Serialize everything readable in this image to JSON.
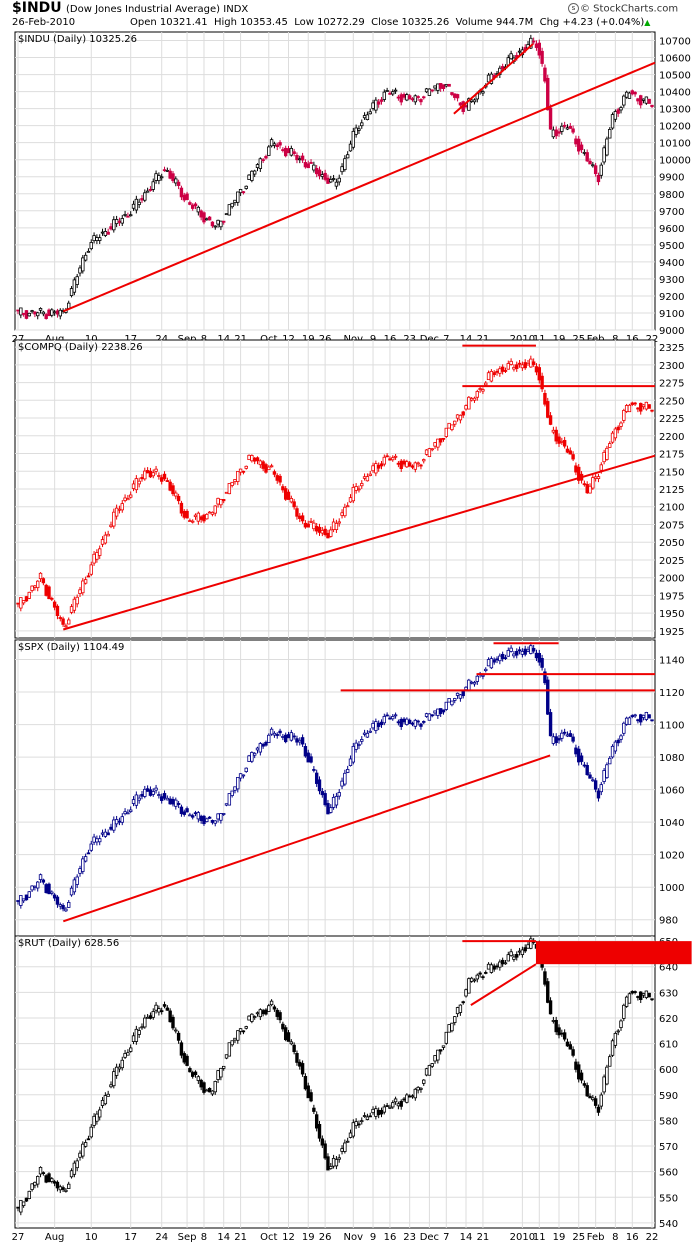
{
  "header": {
    "symbol": "$INDU",
    "name": "(Dow Jones Industrial Average)",
    "exchange": "INDX",
    "date": "26-Feb-2010",
    "ohlc": "Open 10321.41  High 10353.45  Low 10272.29  Close 10325.26  Volume 944.7M  Chg +4.23 (+0.04%)",
    "change_arrow": "▲",
    "brand": "© StockCharts.com"
  },
  "x_axis_labels": [
    "27",
    "Aug",
    "10",
    "17",
    "24",
    "Sep",
    "8",
    "14",
    "21",
    "Oct",
    "12",
    "19",
    "26",
    "Nov",
    "9",
    "16",
    "23",
    "Dec",
    "7",
    "14",
    "21",
    "2010",
    "11",
    "19",
    "25",
    "Feb",
    "8",
    "16",
    "22"
  ],
  "chart_data": [
    {
      "type": "candlestick",
      "label": "$INDU (Daily) 10325.26",
      "symbol": "$INDU",
      "color": "#000000",
      "down_color": "#cc0044",
      "ylim": [
        9000,
        10750
      ],
      "yticks": [
        9000,
        9100,
        9200,
        9300,
        9400,
        9500,
        9600,
        9700,
        9800,
        9900,
        10000,
        10100,
        10200,
        10300,
        10400,
        10500,
        10600,
        10700
      ],
      "anchors": [
        [
          0,
          9100
        ],
        [
          16,
          9100
        ],
        [
          25,
          9500
        ],
        [
          40,
          9700
        ],
        [
          52,
          9950
        ],
        [
          60,
          9750
        ],
        [
          70,
          9600
        ],
        [
          82,
          9900
        ],
        [
          90,
          10100
        ],
        [
          100,
          10000
        ],
        [
          112,
          9850
        ],
        [
          120,
          10200
        ],
        [
          130,
          10400
        ],
        [
          140,
          10350
        ],
        [
          150,
          10450
        ],
        [
          158,
          10300
        ],
        [
          167,
          10480
        ],
        [
          176,
          10620
        ],
        [
          183,
          10700
        ],
        [
          186,
          10500
        ],
        [
          188,
          10150
        ],
        [
          194,
          10200
        ],
        [
          201,
          10000
        ],
        [
          205,
          9900
        ],
        [
          210,
          10250
        ],
        [
          216,
          10400
        ],
        [
          220,
          10350
        ],
        [
          224,
          10325
        ]
      ],
      "trend_lines": [
        [
          [
            16,
            9110
          ],
          [
            238,
            10570
          ]
        ],
        [
          [
            154,
            10270
          ],
          [
            182,
            10680
          ]
        ]
      ]
    },
    {
      "type": "candlestick",
      "label": "$COMPQ (Daily) 2238.26",
      "symbol": "$COMPQ",
      "color": "#ee0000",
      "down_color": "#ee0000",
      "ylim": [
        1915,
        2335
      ],
      "yticks": [
        1925,
        1950,
        1975,
        2000,
        2025,
        2050,
        2075,
        2100,
        2125,
        2150,
        2175,
        2200,
        2225,
        2250,
        2275,
        2300,
        2325
      ],
      "anchors": [
        [
          0,
          1960
        ],
        [
          8,
          2000
        ],
        [
          16,
          1930
        ],
        [
          25,
          2010
        ],
        [
          35,
          2095
        ],
        [
          45,
          2150
        ],
        [
          52,
          2140
        ],
        [
          60,
          2080
        ],
        [
          68,
          2090
        ],
        [
          82,
          2170
        ],
        [
          90,
          2150
        ],
        [
          100,
          2080
        ],
        [
          110,
          2060
        ],
        [
          120,
          2130
        ],
        [
          130,
          2170
        ],
        [
          140,
          2155
        ],
        [
          150,
          2200
        ],
        [
          160,
          2250
        ],
        [
          168,
          2290
        ],
        [
          176,
          2300
        ],
        [
          183,
          2300
        ],
        [
          186,
          2250
        ],
        [
          188,
          2210
        ],
        [
          194,
          2180
        ],
        [
          201,
          2120
        ],
        [
          205,
          2150
        ],
        [
          210,
          2200
        ],
        [
          216,
          2245
        ],
        [
          224,
          2238
        ]
      ],
      "trend_lines": [
        [
          [
            16,
            1927
          ],
          [
            238,
            2172
          ]
        ],
        [
          [
            157,
            2327
          ],
          [
            183,
            2327
          ]
        ],
        [
          [
            157,
            2270
          ],
          [
            238,
            2270
          ]
        ]
      ]
    },
    {
      "type": "candlestick",
      "label": "$SPX (Daily) 1104.49",
      "symbol": "$SPX",
      "color": "#000088",
      "down_color": "#000088",
      "ylim": [
        970,
        1152
      ],
      "yticks": [
        980,
        1000,
        1020,
        1040,
        1060,
        1080,
        1100,
        1120,
        1140
      ],
      "anchors": [
        [
          0,
          990
        ],
        [
          8,
          1005
        ],
        [
          16,
          985
        ],
        [
          25,
          1025
        ],
        [
          35,
          1040
        ],
        [
          45,
          1060
        ],
        [
          52,
          1055
        ],
        [
          60,
          1045
        ],
        [
          70,
          1040
        ],
        [
          82,
          1080
        ],
        [
          90,
          1095
        ],
        [
          100,
          1090
        ],
        [
          110,
          1045
        ],
        [
          120,
          1090
        ],
        [
          130,
          1105
        ],
        [
          140,
          1100
        ],
        [
          150,
          1110
        ],
        [
          160,
          1125
        ],
        [
          168,
          1140
        ],
        [
          176,
          1145
        ],
        [
          183,
          1145
        ],
        [
          186,
          1130
        ],
        [
          188,
          1090
        ],
        [
          194,
          1095
        ],
        [
          201,
          1070
        ],
        [
          205,
          1058
        ],
        [
          210,
          1085
        ],
        [
          216,
          1105
        ],
        [
          224,
          1104
        ]
      ],
      "trend_lines": [
        [
          [
            16,
            979
          ],
          [
            188,
            1081
          ]
        ],
        [
          [
            114,
            1121
          ],
          [
            238,
            1121
          ]
        ],
        [
          [
            168,
            1150
          ],
          [
            191,
            1150
          ]
        ],
        [
          [
            162,
            1131
          ],
          [
            238,
            1131
          ]
        ]
      ]
    },
    {
      "type": "candlestick",
      "label": "$RUT (Daily) 628.56",
      "symbol": "$RUT",
      "color": "#000000",
      "down_color": "#000000",
      "ylim": [
        538,
        652
      ],
      "yticks": [
        540,
        550,
        560,
        570,
        580,
        590,
        600,
        610,
        620,
        630,
        640,
        650
      ],
      "anchors": [
        [
          0,
          545
        ],
        [
          8,
          560
        ],
        [
          16,
          552
        ],
        [
          25,
          575
        ],
        [
          35,
          600
        ],
        [
          45,
          620
        ],
        [
          52,
          625
        ],
        [
          60,
          600
        ],
        [
          68,
          590
        ],
        [
          75,
          610
        ],
        [
          82,
          620
        ],
        [
          90,
          625
        ],
        [
          100,
          600
        ],
        [
          110,
          560
        ],
        [
          120,
          580
        ],
        [
          130,
          585
        ],
        [
          140,
          590
        ],
        [
          150,
          610
        ],
        [
          160,
          635
        ],
        [
          168,
          640
        ],
        [
          176,
          645
        ],
        [
          183,
          650
        ],
        [
          186,
          635
        ],
        [
          188,
          620
        ],
        [
          194,
          610
        ],
        [
          201,
          590
        ],
        [
          205,
          585
        ],
        [
          210,
          610
        ],
        [
          216,
          630
        ],
        [
          224,
          628
        ]
      ],
      "trend_lines": [
        [
          [
            157,
            650
          ],
          [
            183,
            650
          ]
        ],
        [
          [
            160,
            625
          ],
          [
            183,
            641
          ]
        ]
      ],
      "highlight_box": [
        [
          183,
          650
        ],
        [
          238,
          641
        ]
      ]
    }
  ]
}
